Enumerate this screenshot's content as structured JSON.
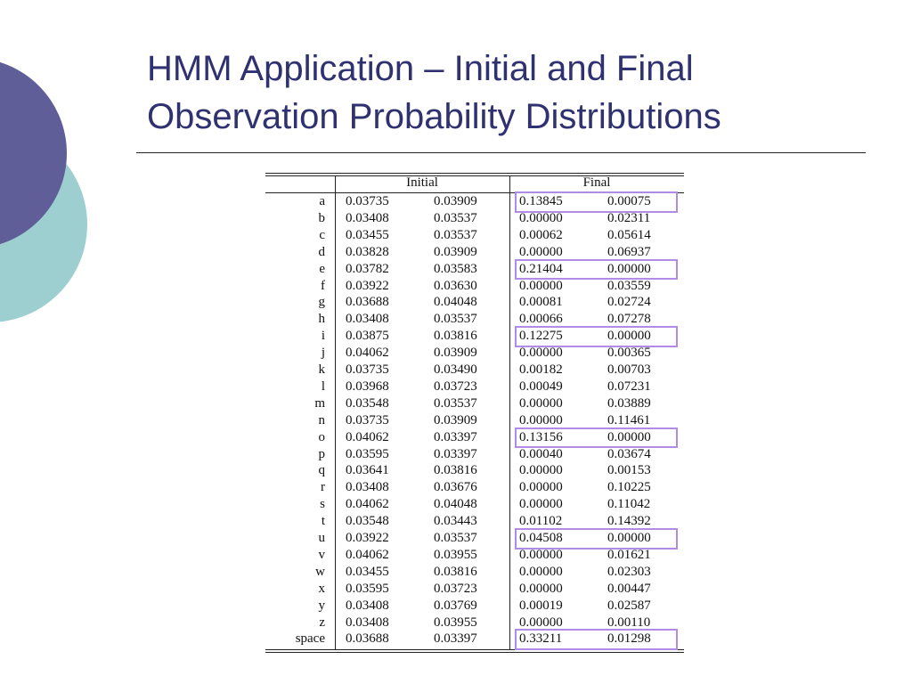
{
  "slide": {
    "title": [
      "HMM Application – Initial and Final",
      "Observation Probability Distributions"
    ],
    "table": {
      "groups": [
        "Initial",
        "Final"
      ],
      "rows": [
        {
          "label": "a",
          "cells": [
            "0.03735",
            "0.03909",
            "0.13845",
            "0.00075"
          ],
          "highlight": true
        },
        {
          "label": "b",
          "cells": [
            "0.03408",
            "0.03537",
            "0.00000",
            "0.02311"
          ]
        },
        {
          "label": "c",
          "cells": [
            "0.03455",
            "0.03537",
            "0.00062",
            "0.05614"
          ]
        },
        {
          "label": "d",
          "cells": [
            "0.03828",
            "0.03909",
            "0.00000",
            "0.06937"
          ]
        },
        {
          "label": "e",
          "cells": [
            "0.03782",
            "0.03583",
            "0.21404",
            "0.00000"
          ],
          "highlight": true
        },
        {
          "label": "f",
          "cells": [
            "0.03922",
            "0.03630",
            "0.00000",
            "0.03559"
          ]
        },
        {
          "label": "g",
          "cells": [
            "0.03688",
            "0.04048",
            "0.00081",
            "0.02724"
          ]
        },
        {
          "label": "h",
          "cells": [
            "0.03408",
            "0.03537",
            "0.00066",
            "0.07278"
          ]
        },
        {
          "label": "i",
          "cells": [
            "0.03875",
            "0.03816",
            "0.12275",
            "0.00000"
          ],
          "highlight": true
        },
        {
          "label": "j",
          "cells": [
            "0.04062",
            "0.03909",
            "0.00000",
            "0.00365"
          ]
        },
        {
          "label": "k",
          "cells": [
            "0.03735",
            "0.03490",
            "0.00182",
            "0.00703"
          ]
        },
        {
          "label": "l",
          "cells": [
            "0.03968",
            "0.03723",
            "0.00049",
            "0.07231"
          ]
        },
        {
          "label": "m",
          "cells": [
            "0.03548",
            "0.03537",
            "0.00000",
            "0.03889"
          ]
        },
        {
          "label": "n",
          "cells": [
            "0.03735",
            "0.03909",
            "0.00000",
            "0.11461"
          ]
        },
        {
          "label": "o",
          "cells": [
            "0.04062",
            "0.03397",
            "0.13156",
            "0.00000"
          ],
          "highlight": true
        },
        {
          "label": "p",
          "cells": [
            "0.03595",
            "0.03397",
            "0.00040",
            "0.03674"
          ]
        },
        {
          "label": "q",
          "cells": [
            "0.03641",
            "0.03816",
            "0.00000",
            "0.00153"
          ]
        },
        {
          "label": "r",
          "cells": [
            "0.03408",
            "0.03676",
            "0.00000",
            "0.10225"
          ]
        },
        {
          "label": "s",
          "cells": [
            "0.04062",
            "0.04048",
            "0.00000",
            "0.11042"
          ]
        },
        {
          "label": "t",
          "cells": [
            "0.03548",
            "0.03443",
            "0.01102",
            "0.14392"
          ]
        },
        {
          "label": "u",
          "cells": [
            "0.03922",
            "0.03537",
            "0.04508",
            "0.00000"
          ],
          "highlight": true
        },
        {
          "label": "v",
          "cells": [
            "0.04062",
            "0.03955",
            "0.00000",
            "0.01621"
          ]
        },
        {
          "label": "w",
          "cells": [
            "0.03455",
            "0.03816",
            "0.00000",
            "0.02303"
          ]
        },
        {
          "label": "x",
          "cells": [
            "0.03595",
            "0.03723",
            "0.00000",
            "0.00447"
          ]
        },
        {
          "label": "y",
          "cells": [
            "0.03408",
            "0.03769",
            "0.00019",
            "0.02587"
          ]
        },
        {
          "label": "z",
          "cells": [
            "0.03408",
            "0.03955",
            "0.00000",
            "0.00110"
          ]
        },
        {
          "label": "space",
          "cells": [
            "0.03688",
            "0.03397",
            "0.33211",
            "0.01298"
          ],
          "highlight": true
        }
      ]
    }
  }
}
